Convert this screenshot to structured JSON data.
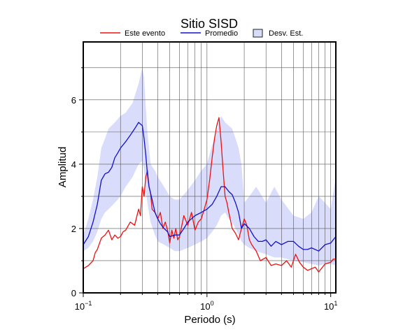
{
  "chart_data": {
    "type": "line",
    "title": "Sitio SISD",
    "xlabel": "Periodo (s)",
    "ylabel": "Amplitud",
    "xscale": "log",
    "xlim": [
      0.1,
      11
    ],
    "ylim": [
      0,
      7.8
    ],
    "grid": true,
    "legend_position": "top-center",
    "x_ticks": [
      {
        "value": 0.1,
        "base": "10",
        "exp": "−1"
      },
      {
        "value": 1,
        "base": "10",
        "exp": "0"
      },
      {
        "value": 10,
        "base": "10",
        "exp": "1"
      }
    ],
    "y_ticks": [
      {
        "value": 0,
        "label": "0"
      },
      {
        "value": 2,
        "label": "2"
      },
      {
        "value": 4,
        "label": "4"
      },
      {
        "value": 6,
        "label": "6"
      }
    ],
    "legend": {
      "event": "Este evento",
      "mean": "Promedio",
      "std": "Desv. Est."
    },
    "colors": {
      "event": "#ee1111",
      "mean": "#1111cc",
      "std_fill": "#d9dcfb",
      "std_edge": "#222222"
    },
    "series": [
      {
        "name": "Este evento",
        "x": [
          0.1,
          0.11,
          0.12,
          0.125,
          0.13,
          0.14,
          0.15,
          0.16,
          0.17,
          0.18,
          0.19,
          0.2,
          0.21,
          0.22,
          0.24,
          0.26,
          0.28,
          0.29,
          0.3,
          0.31,
          0.32,
          0.33,
          0.34,
          0.35,
          0.36,
          0.38,
          0.4,
          0.42,
          0.44,
          0.46,
          0.48,
          0.5,
          0.52,
          0.54,
          0.56,
          0.58,
          0.6,
          0.65,
          0.7,
          0.75,
          0.8,
          0.85,
          0.9,
          0.95,
          1.0,
          1.05,
          1.1,
          1.15,
          1.2,
          1.25,
          1.3,
          1.35,
          1.4,
          1.45,
          1.5,
          1.6,
          1.7,
          1.8,
          1.9,
          2.0,
          2.1,
          2.2,
          2.3,
          2.5,
          2.7,
          3.0,
          3.3,
          3.6,
          4.0,
          4.4,
          4.8,
          5.2,
          5.6,
          6.0,
          6.5,
          7.0,
          7.5,
          8.0,
          9.0,
          10.0,
          10.5,
          11.0
        ],
        "values": [
          0.75,
          0.85,
          1.0,
          1.25,
          1.35,
          1.7,
          1.8,
          1.95,
          1.65,
          1.8,
          1.7,
          1.75,
          1.9,
          1.95,
          2.2,
          2.1,
          2.6,
          2.4,
          3.3,
          3.0,
          3.6,
          3.8,
          3.3,
          3.1,
          2.6,
          2.5,
          2.3,
          2.5,
          2.0,
          2.2,
          1.95,
          1.55,
          1.95,
          1.7,
          2.0,
          1.65,
          1.75,
          2.4,
          2.1,
          2.5,
          1.95,
          2.2,
          2.3,
          2.6,
          2.9,
          3.5,
          4.2,
          4.8,
          5.2,
          5.45,
          4.7,
          3.8,
          3.0,
          2.8,
          2.5,
          2.0,
          1.85,
          1.65,
          2.0,
          2.3,
          2.1,
          1.65,
          1.5,
          1.3,
          1.0,
          1.1,
          0.85,
          0.9,
          0.85,
          1.0,
          0.8,
          1.2,
          0.95,
          0.8,
          0.7,
          0.75,
          0.8,
          0.65,
          0.9,
          0.95,
          1.05,
          1.05
        ]
      },
      {
        "name": "Promedio",
        "x": [
          0.1,
          0.11,
          0.12,
          0.13,
          0.14,
          0.15,
          0.16,
          0.17,
          0.18,
          0.19,
          0.2,
          0.22,
          0.24,
          0.26,
          0.28,
          0.3,
          0.31,
          0.32,
          0.33,
          0.34,
          0.36,
          0.38,
          0.4,
          0.42,
          0.45,
          0.48,
          0.5,
          0.55,
          0.6,
          0.65,
          0.7,
          0.8,
          0.9,
          1.0,
          1.1,
          1.2,
          1.3,
          1.4,
          1.5,
          1.6,
          1.7,
          1.8,
          1.9,
          2.0,
          2.2,
          2.4,
          2.6,
          2.8,
          3.0,
          3.3,
          3.6,
          4.0,
          4.5,
          5.0,
          5.5,
          6.0,
          6.5,
          7.0,
          8.0,
          9.0,
          10.0,
          11.0
        ],
        "values": [
          1.5,
          1.75,
          2.2,
          2.75,
          3.5,
          3.7,
          3.75,
          3.9,
          4.2,
          4.35,
          4.5,
          4.7,
          4.9,
          5.1,
          5.3,
          5.2,
          4.8,
          4.3,
          3.7,
          3.3,
          2.9,
          2.5,
          2.3,
          2.15,
          2.0,
          1.9,
          1.75,
          1.8,
          1.8,
          2.0,
          2.2,
          2.4,
          2.5,
          2.6,
          2.75,
          3.0,
          3.3,
          3.3,
          3.15,
          3.05,
          2.8,
          2.5,
          2.0,
          2.15,
          2.0,
          1.75,
          1.6,
          1.6,
          1.65,
          1.45,
          1.6,
          1.5,
          1.6,
          1.6,
          1.45,
          1.35,
          1.35,
          1.4,
          1.3,
          1.5,
          1.55,
          1.75
        ]
      },
      {
        "name": "Desv. Est.",
        "x": [
          0.1,
          0.11,
          0.12,
          0.13,
          0.14,
          0.15,
          0.16,
          0.18,
          0.2,
          0.22,
          0.25,
          0.28,
          0.3,
          0.31,
          0.32,
          0.33,
          0.35,
          0.38,
          0.4,
          0.45,
          0.5,
          0.55,
          0.6,
          0.7,
          0.8,
          0.9,
          1.0,
          1.1,
          1.2,
          1.3,
          1.4,
          1.5,
          1.6,
          1.7,
          1.8,
          1.9,
          2.0,
          2.2,
          2.5,
          3.0,
          3.5,
          4.0,
          5.0,
          6.0,
          7.0,
          8.0,
          9.0,
          10.0,
          11.0
        ],
        "upper": [
          1.8,
          2.3,
          2.9,
          3.6,
          4.5,
          4.8,
          5.1,
          5.3,
          5.5,
          5.6,
          5.9,
          6.5,
          7.0,
          6.7,
          5.8,
          5.0,
          4.0,
          3.8,
          3.6,
          3.3,
          3.0,
          2.9,
          2.9,
          3.2,
          3.5,
          3.8,
          4.0,
          4.6,
          5.0,
          5.5,
          5.3,
          5.2,
          5.1,
          4.8,
          4.5,
          4.0,
          2.8,
          3.0,
          3.3,
          2.8,
          3.3,
          2.9,
          2.4,
          2.3,
          2.5,
          3.0,
          2.8,
          2.6,
          3.6
        ],
        "lower": [
          1.3,
          1.4,
          1.6,
          1.9,
          2.3,
          2.5,
          2.6,
          2.8,
          3.0,
          3.3,
          3.6,
          4.0,
          4.1,
          3.8,
          3.2,
          2.8,
          2.2,
          1.8,
          1.6,
          1.5,
          1.4,
          1.3,
          1.3,
          1.4,
          1.5,
          1.6,
          1.7,
          1.9,
          2.1,
          2.4,
          2.5,
          2.3,
          2.2,
          2.0,
          1.8,
          1.6,
          1.5,
          1.4,
          1.3,
          1.2,
          1.1,
          1.1,
          1.0,
          0.95,
          0.9,
          0.85,
          0.9,
          0.9,
          0.85
        ]
      }
    ]
  }
}
